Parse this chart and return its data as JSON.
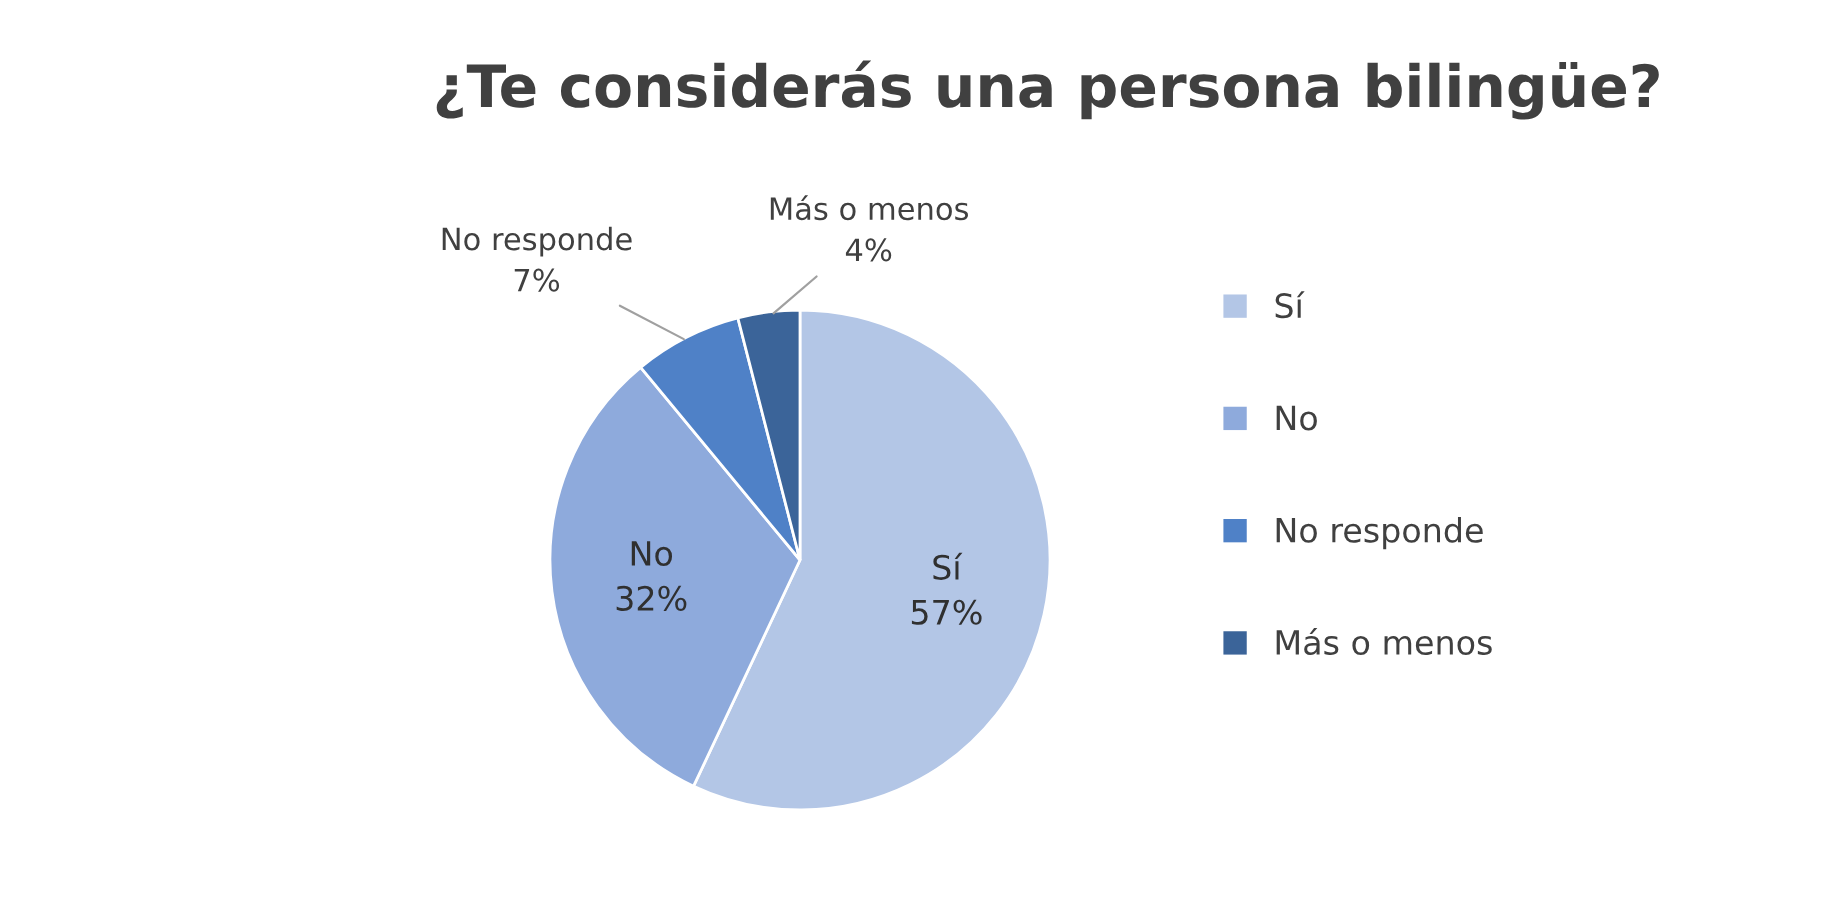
{
  "chart_data": {
    "type": "pie",
    "title": "¿Te considerás una persona bilingüe?",
    "categories": [
      "Sí",
      "No",
      "No responde",
      "Más o menos"
    ],
    "values": [
      57,
      32,
      7,
      4
    ],
    "value_labels": [
      "57%",
      "32%",
      "7%",
      "4%"
    ],
    "colors": [
      "#b3c6e6",
      "#8eaadc",
      "#4f81c7",
      "#3b6499"
    ],
    "legend": "right"
  }
}
